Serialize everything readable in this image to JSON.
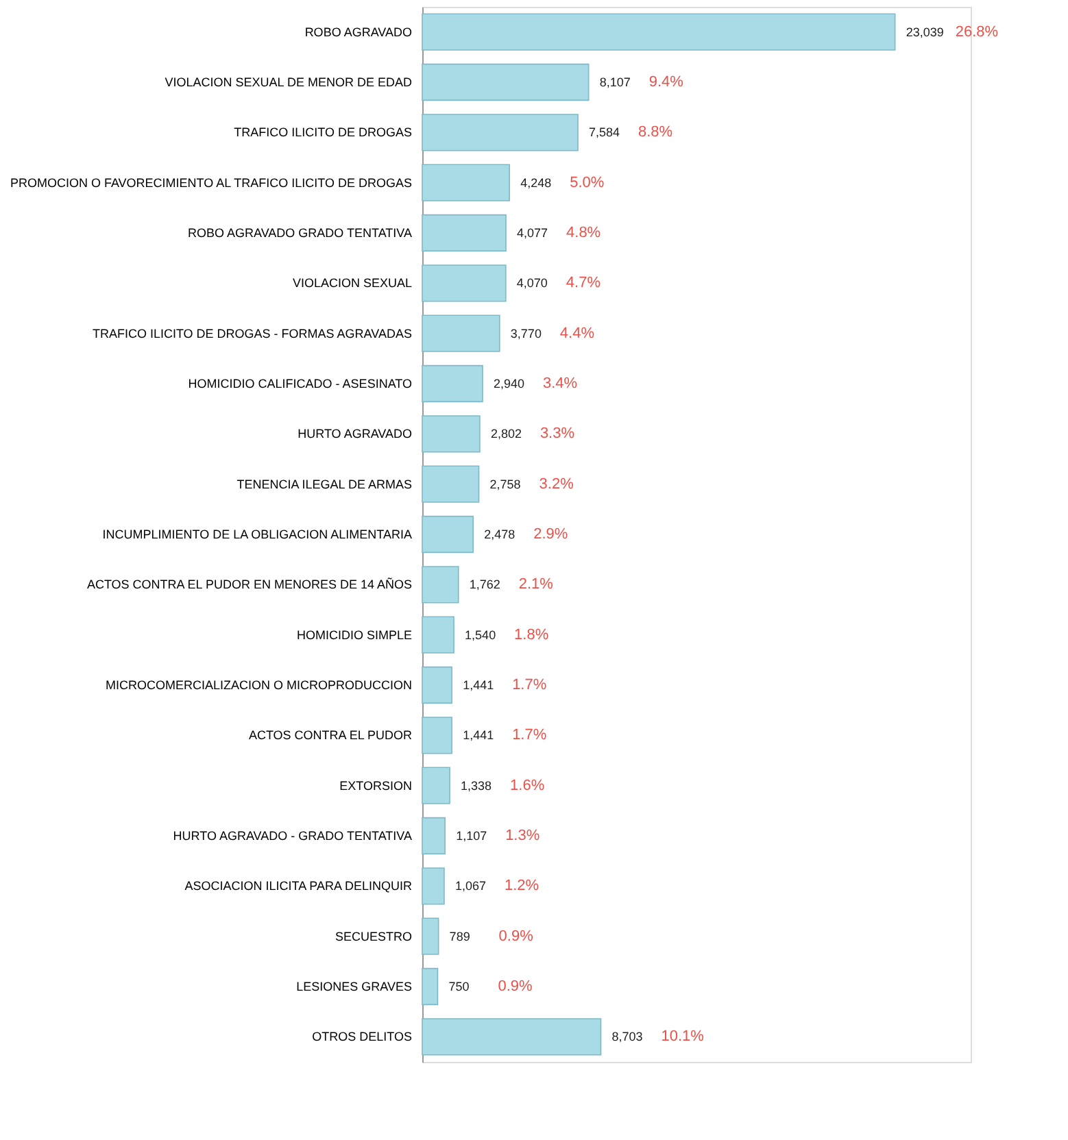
{
  "chart_data": {
    "type": "bar",
    "orientation": "horizontal",
    "grid": false,
    "tick_labels": "y",
    "categories": [
      "ROBO AGRAVADO",
      "VIOLACION SEXUAL DE MENOR DE EDAD",
      "TRAFICO ILICITO DE DROGAS",
      "PROMOCION O FAVORECIMIENTO AL TRAFICO ILICITO DE DROGAS",
      "ROBO AGRAVADO GRADO TENTATIVA",
      "VIOLACION SEXUAL",
      "TRAFICO ILICITO DE DROGAS - FORMAS AGRAVADAS",
      "HOMICIDIO CALIFICADO - ASESINATO",
      "HURTO AGRAVADO",
      "TENENCIA ILEGAL DE ARMAS",
      "INCUMPLIMIENTO DE LA OBLIGACION ALIMENTARIA",
      "ACTOS CONTRA EL PUDOR EN MENORES DE 14 AÑOS",
      "HOMICIDIO SIMPLE",
      "MICROCOMERCIALIZACION O MICROPRODUCCION",
      "ACTOS CONTRA EL PUDOR",
      "EXTORSION",
      "HURTO AGRAVADO - GRADO TENTATIVA",
      "ASOCIACION ILICITA PARA DELINQUIR",
      "SECUESTRO",
      "LESIONES GRAVES",
      "OTROS DELITOS"
    ],
    "series": [
      {
        "color": "#a8dbe5",
        "values": [
          23039,
          8107,
          7584,
          4248,
          4077,
          4070,
          3770,
          2940,
          2802,
          2758,
          2478,
          1762,
          1540,
          1441,
          1441,
          1338,
          1107,
          1067,
          789,
          750,
          8703
        ],
        "value_labels": [
          "23,039",
          "8,107",
          "7,584",
          "4,248",
          "4,077",
          "4,070",
          "3,770",
          "2,940",
          "2,802",
          "2,758",
          "2,478",
          "1,762",
          "1,540",
          "1,441",
          "1,441",
          "1,338",
          "1,107",
          "1,067",
          "789",
          "750",
          "8,703"
        ]
      }
    ],
    "annotations": [
      "26.8%",
      "9.4%",
      "8.8%",
      "5.0%",
      "4.8%",
      "4.7%",
      "4.4%",
      "3.4%",
      "3.3%",
      "3.2%",
      "2.9%",
      "2.1%",
      "1.8%",
      "1.7%",
      "1.7%",
      "1.6%",
      "1.3%",
      "1.2%",
      "0.9%",
      "0.9%",
      "10.1%"
    ]
  }
}
